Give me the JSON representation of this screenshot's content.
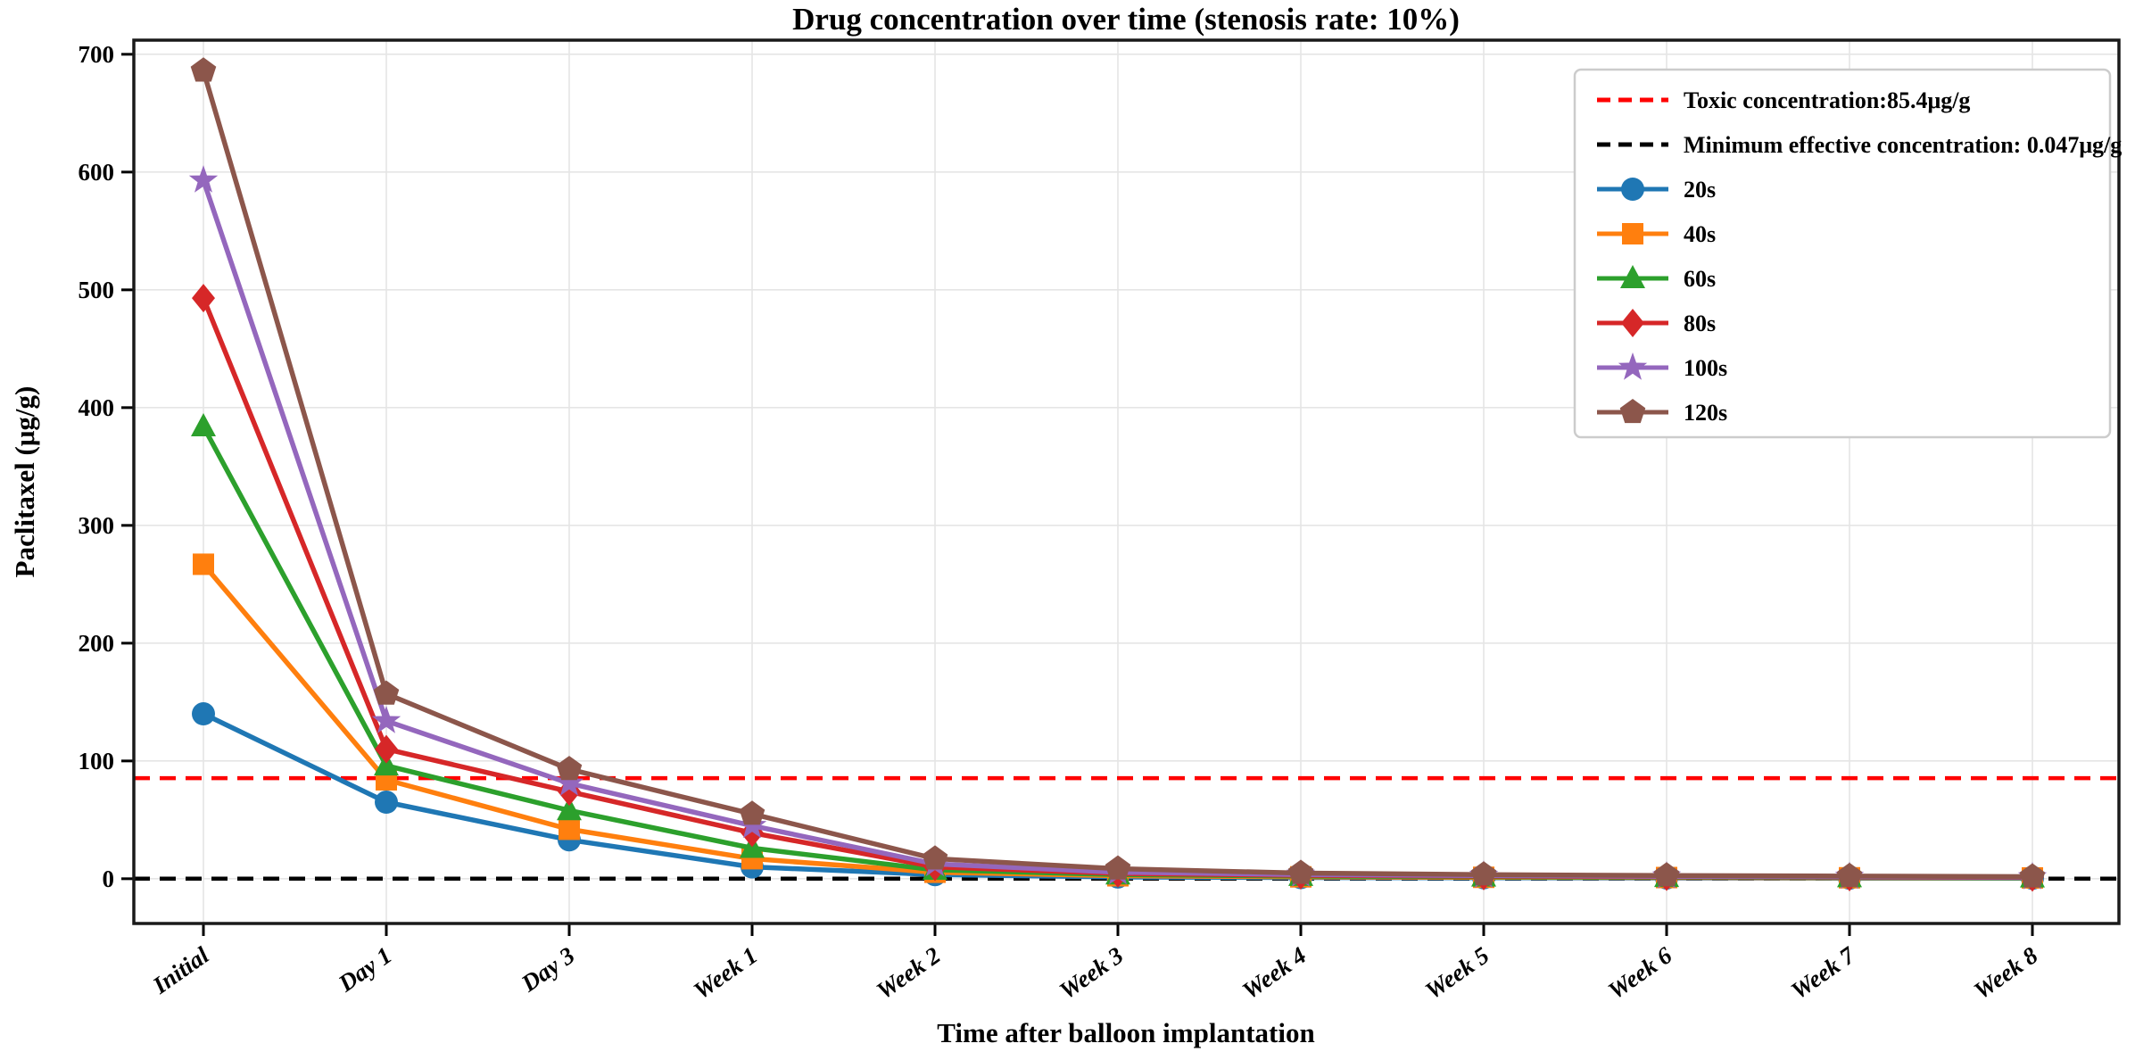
{
  "figure": {
    "background": "#ffffff"
  },
  "chart_data": {
    "type": "line",
    "title": "Drug concentration over time (stenosis rate: 10%)",
    "xlabel": "Time after balloon implantation",
    "ylabel": "Paclitaxel (μg/g)",
    "categories": [
      "Initial",
      "Day 1",
      "Day 3",
      "Week 1",
      "Week 2",
      "Week 3",
      "Week 4",
      "Week 5",
      "Week 6",
      "Week 7",
      "Week 8"
    ],
    "yticks": [
      0,
      100,
      200,
      300,
      400,
      500,
      600,
      700
    ],
    "ylim": [
      -38,
      712
    ],
    "grid": true,
    "legend_position": "upper right",
    "reference_lines": [
      {
        "id": "toxic",
        "label": "Toxic concentration:85.4μg/g",
        "value": 85.4,
        "color": "#ff0000",
        "style": "dashed"
      },
      {
        "id": "min-effective",
        "label": "Minimum effective concentration: 0.047μg/g",
        "value": 0.047,
        "color": "#000000",
        "style": "dashed"
      }
    ],
    "series": [
      {
        "name": "20s",
        "color": "#1f77b4",
        "marker": "circle",
        "values": [
          140,
          65,
          33,
          10,
          3.5,
          1.5,
          1.0,
          0.8,
          0.6,
          0.5,
          0.4
        ]
      },
      {
        "name": "40s",
        "color": "#ff7f0e",
        "marker": "square",
        "values": [
          267,
          84,
          42,
          17,
          5.5,
          2.5,
          1.6,
          1.2,
          1.0,
          0.8,
          0.7
        ]
      },
      {
        "name": "60s",
        "color": "#2ca02c",
        "marker": "triangle",
        "values": [
          384,
          96,
          58,
          26,
          7.5,
          3.5,
          2.2,
          1.7,
          1.3,
          1.1,
          0.9
        ]
      },
      {
        "name": "80s",
        "color": "#d62728",
        "marker": "diamond",
        "values": [
          493,
          110,
          74,
          39,
          10,
          4.5,
          2.9,
          2.2,
          1.7,
          1.4,
          1.1
        ]
      },
      {
        "name": "100s",
        "color": "#9467bd",
        "marker": "star",
        "values": [
          593,
          134,
          81,
          45,
          12.5,
          5.5,
          3.6,
          2.7,
          2.1,
          1.7,
          1.4
        ]
      },
      {
        "name": "120s",
        "color": "#8c564b",
        "marker": "pentagon",
        "values": [
          686,
          157,
          93,
          55,
          17,
          8.5,
          4.8,
          3.5,
          2.7,
          2.2,
          1.8
        ]
      }
    ]
  }
}
